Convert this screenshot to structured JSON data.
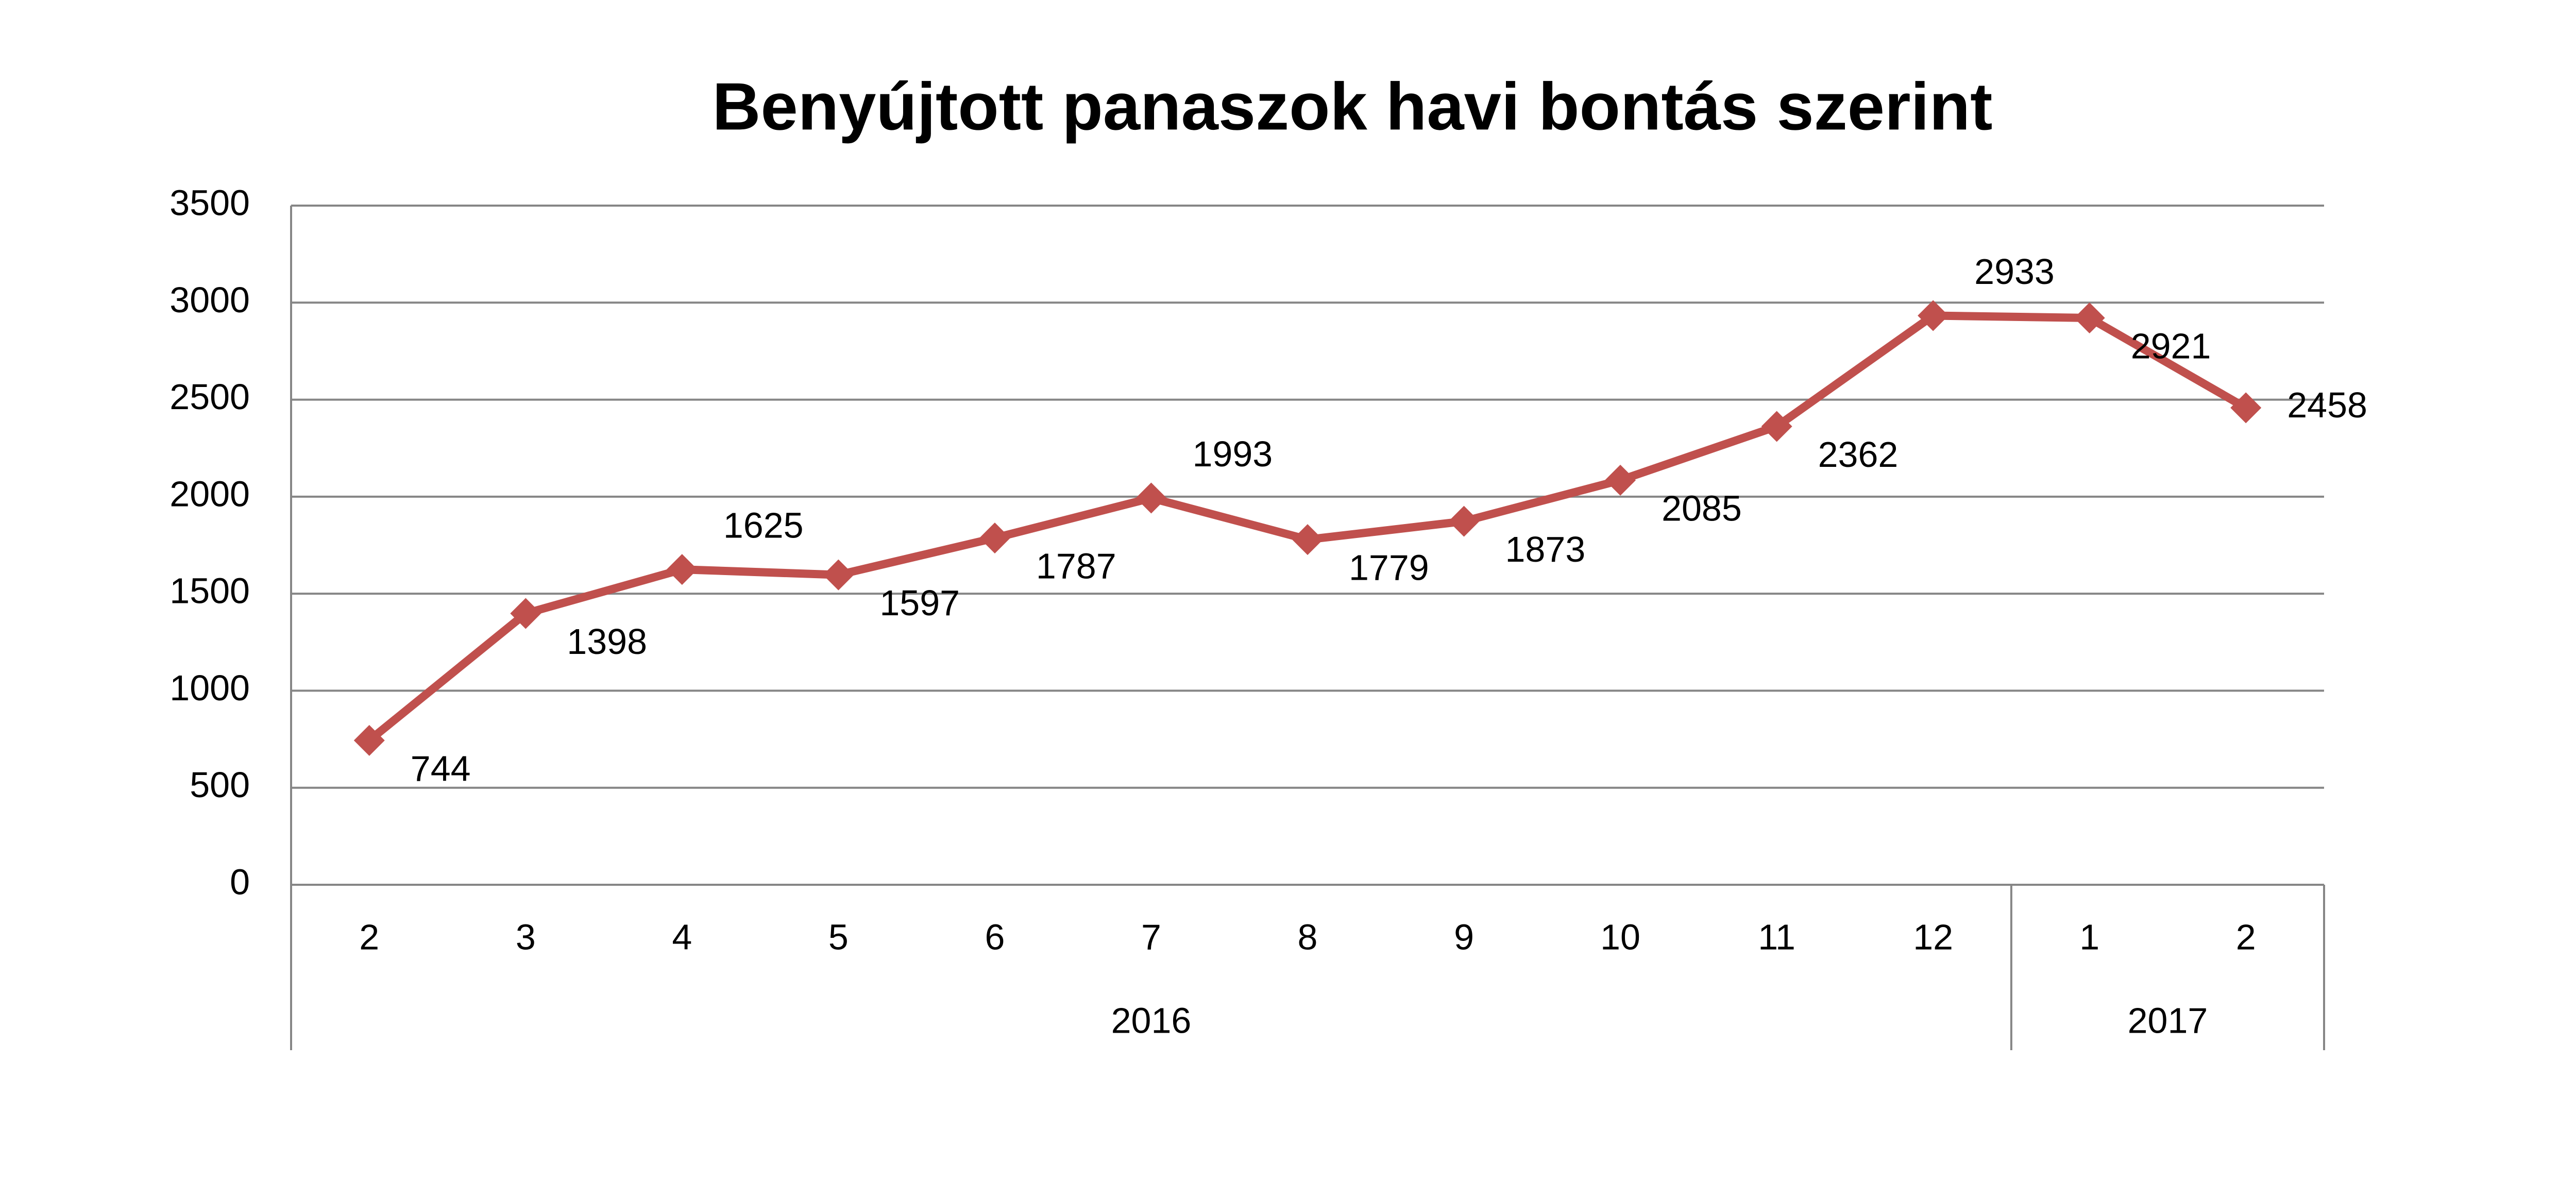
{
  "chart_data": {
    "type": "line",
    "title": "Benyújtott panaszok havi bontás szerint",
    "groups": [
      {
        "label": "2016",
        "categories": [
          "2",
          "3",
          "4",
          "5",
          "6",
          "7",
          "8",
          "9",
          "10",
          "11",
          "12"
        ]
      },
      {
        "label": "2017",
        "categories": [
          "1",
          "2"
        ]
      }
    ],
    "series": [
      {
        "color": "#c0504d",
        "values": [
          744,
          1398,
          1625,
          1597,
          1787,
          1993,
          1779,
          1873,
          2085,
          2362,
          2933,
          2921,
          2458
        ]
      }
    ],
    "ylim": [
      0,
      3500
    ],
    "yticks": [
      0,
      500,
      1000,
      1500,
      2000,
      2500,
      3000,
      3500
    ],
    "grid": true
  }
}
